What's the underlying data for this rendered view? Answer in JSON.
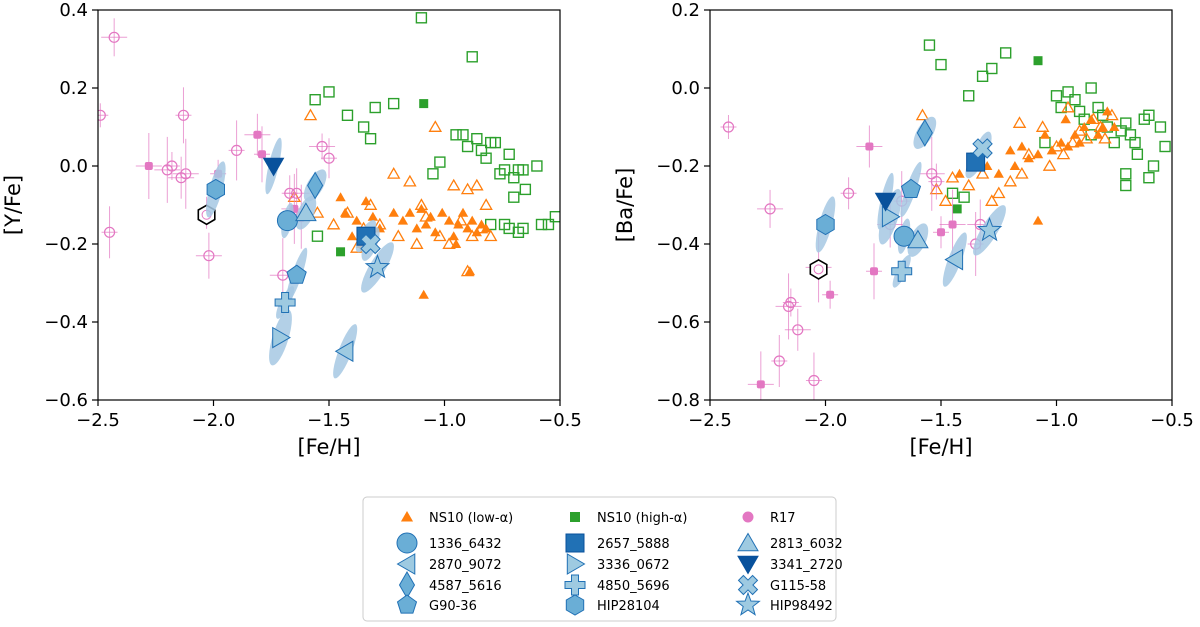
{
  "colors": {
    "low_alpha": "#ff7f0e",
    "high_alpha": "#2ca02c",
    "r17": "#e377c2",
    "star_fill": "#6aaed6",
    "star_fill_light": "#9ecae1",
    "star_dark": "#2171b5",
    "star_darker": "#08519c",
    "ellipse": "#a6c8e3"
  },
  "chart_data": [
    {
      "type": "scatter",
      "title": "",
      "xlabel": "[Fe/H]",
      "ylabel": "[Y/Fe]",
      "xlim": [
        -2.5,
        -0.5
      ],
      "ylim": [
        -0.6,
        0.4
      ],
      "xticks": [
        -2.5,
        -2.0,
        -1.5,
        -1.0,
        -0.5
      ],
      "xtick_labels": [
        "−2.5",
        "−2.0",
        "−1.5",
        "−1.0",
        "−0.5"
      ],
      "yticks": [
        -0.6,
        -0.4,
        -0.2,
        0.0,
        0.2,
        0.4
      ],
      "ytick_labels": [
        "−0.6",
        "−0.4",
        "−0.2",
        "0.0",
        "0.2",
        "0.4"
      ],
      "ns10_low_filled": [
        [
          -1.45,
          -0.08
        ],
        [
          -1.43,
          -0.12
        ],
        [
          -1.38,
          -0.14
        ],
        [
          -1.34,
          -0.09
        ],
        [
          -1.31,
          -0.13
        ],
        [
          -1.28,
          -0.16
        ],
        [
          -1.22,
          -0.12
        ],
        [
          -1.18,
          -0.14
        ],
        [
          -1.15,
          -0.12
        ],
        [
          -1.12,
          -0.16
        ],
        [
          -1.1,
          -0.11
        ],
        [
          -1.08,
          -0.15
        ],
        [
          -1.06,
          -0.13
        ],
        [
          -1.04,
          -0.17
        ],
        [
          -1.01,
          -0.12
        ],
        [
          -0.98,
          -0.14
        ],
        [
          -0.96,
          -0.18
        ],
        [
          -0.94,
          -0.15
        ],
        [
          -0.92,
          -0.12
        ],
        [
          -0.9,
          -0.16
        ],
        [
          -0.88,
          -0.14
        ],
        [
          -0.86,
          -0.17
        ],
        [
          -0.84,
          -0.15
        ],
        [
          -0.82,
          -0.16
        ],
        [
          -0.89,
          -0.27
        ],
        [
          -1.09,
          -0.33
        ],
        [
          -1.4,
          -0.18
        ],
        [
          -1.36,
          -0.2
        ],
        [
          -0.95,
          -0.2
        ]
      ],
      "ns10_low_open": [
        [
          -1.65,
          -0.08
        ],
        [
          -1.58,
          0.13
        ],
        [
          -1.55,
          -0.12
        ],
        [
          -1.48,
          -0.15
        ],
        [
          -1.42,
          -0.12
        ],
        [
          -1.38,
          -0.21
        ],
        [
          -1.35,
          -0.16
        ],
        [
          -1.32,
          -0.1
        ],
        [
          -1.28,
          -0.15
        ],
        [
          -1.2,
          -0.18
        ],
        [
          -1.15,
          -0.04
        ],
        [
          -1.12,
          -0.2
        ],
        [
          -1.08,
          -0.13
        ],
        [
          -1.04,
          0.1
        ],
        [
          -1.02,
          -0.18
        ],
        [
          -0.98,
          -0.2
        ],
        [
          -0.96,
          -0.05
        ],
        [
          -0.93,
          -0.14
        ],
        [
          -0.9,
          -0.06
        ],
        [
          -0.88,
          -0.18
        ],
        [
          -0.86,
          -0.05
        ],
        [
          -0.84,
          -0.16
        ],
        [
          -0.82,
          -0.1
        ],
        [
          -0.8,
          -0.18
        ],
        [
          -0.9,
          -0.27
        ],
        [
          -1.1,
          -0.1
        ],
        [
          -1.22,
          -0.02
        ]
      ],
      "ns10_high_filled": [
        [
          -1.45,
          -0.22
        ],
        [
          -1.09,
          0.16
        ]
      ],
      "ns10_high_open": [
        [
          -1.55,
          -0.18
        ],
        [
          -1.56,
          0.17
        ],
        [
          -1.5,
          0.19
        ],
        [
          -1.42,
          0.13
        ],
        [
          -1.35,
          0.1
        ],
        [
          -1.32,
          0.07
        ],
        [
          -1.3,
          0.15
        ],
        [
          -1.22,
          0.16
        ],
        [
          -1.1,
          0.38
        ],
        [
          -1.02,
          0.01
        ],
        [
          -1.05,
          -0.02
        ],
        [
          -0.95,
          0.08
        ],
        [
          -0.92,
          0.08
        ],
        [
          -0.9,
          0.05
        ],
        [
          -0.88,
          0.28
        ],
        [
          -0.86,
          0.07
        ],
        [
          -0.84,
          0.04
        ],
        [
          -0.82,
          0.02
        ],
        [
          -0.8,
          0.06
        ],
        [
          -0.78,
          0.06
        ],
        [
          -0.76,
          -0.02
        ],
        [
          -0.74,
          -0.01
        ],
        [
          -0.72,
          0.03
        ],
        [
          -0.7,
          -0.03
        ],
        [
          -0.68,
          -0.01
        ],
        [
          -0.66,
          -0.01
        ],
        [
          -0.74,
          -0.15
        ],
        [
          -0.72,
          -0.16
        ],
        [
          -0.68,
          -0.17
        ],
        [
          -0.66,
          -0.16
        ],
        [
          -0.6,
          0.0
        ],
        [
          -0.58,
          -0.15
        ],
        [
          -0.55,
          -0.15
        ],
        [
          -0.52,
          -0.13
        ],
        [
          -0.7,
          -0.08
        ],
        [
          -0.65,
          -0.06
        ],
        [
          -0.8,
          -0.15
        ]
      ],
      "r17_filled": [
        [
          -2.28,
          0.0
        ],
        [
          -1.98,
          -0.02
        ],
        [
          -1.81,
          0.08
        ],
        [
          -1.79,
          0.03
        ],
        [
          -1.65,
          -0.11
        ]
      ],
      "r17_open": [
        [
          -2.49,
          0.13
        ],
        [
          -2.43,
          0.33
        ],
        [
          -2.45,
          -0.17
        ],
        [
          -2.2,
          -0.01
        ],
        [
          -2.18,
          0.0
        ],
        [
          -2.14,
          -0.03
        ],
        [
          -2.13,
          0.13
        ],
        [
          -2.12,
          -0.02
        ],
        [
          -2.03,
          -0.12
        ],
        [
          -2.02,
          -0.23
        ],
        [
          -1.9,
          0.04
        ],
        [
          -1.7,
          -0.28
        ],
        [
          -1.67,
          -0.07
        ],
        [
          -1.64,
          -0.07
        ],
        [
          -1.62,
          -0.13
        ],
        [
          -1.53,
          0.05
        ],
        [
          -1.5,
          0.02
        ]
      ],
      "sample": [
        {
          "name": "1336_6432",
          "marker": "circle",
          "shade": "mid",
          "x": -1.68,
          "y": -0.14
        },
        {
          "name": "2870_9072",
          "marker": "tri_left",
          "shade": "light",
          "x": -1.43,
          "y": -0.475
        },
        {
          "name": "4587_5616",
          "marker": "diamond",
          "shade": "mid",
          "x": -1.56,
          "y": -0.05
        },
        {
          "name": "G90-36",
          "marker": "pentagon",
          "shade": "mid",
          "x": -1.64,
          "y": -0.28
        },
        {
          "name": "2657_5888",
          "marker": "square",
          "shade": "dark",
          "x": -1.34,
          "y": -0.18
        },
        {
          "name": "3336_0672",
          "marker": "tri_right",
          "shade": "light",
          "x": -1.71,
          "y": -0.44
        },
        {
          "name": "4850_5696",
          "marker": "plus",
          "shade": "light",
          "x": -1.69,
          "y": -0.35
        },
        {
          "name": "HIP28104",
          "marker": "hexagon",
          "shade": "mid",
          "x": -1.99,
          "y": -0.06
        },
        {
          "name": "2813_6032",
          "marker": "tri_up",
          "shade": "light",
          "x": -1.6,
          "y": -0.12
        },
        {
          "name": "3341_2720",
          "marker": "tri_down",
          "shade": "darker",
          "x": -1.74,
          "y": 0.0
        },
        {
          "name": "G115-58",
          "marker": "cross",
          "shade": "light",
          "x": -1.32,
          "y": -0.2
        },
        {
          "name": "HIP98492",
          "marker": "star",
          "shade": "light",
          "x": -1.29,
          "y": -0.26
        }
      ],
      "sun_like": {
        "x": -2.03,
        "y": -0.125
      }
    },
    {
      "type": "scatter",
      "title": "",
      "xlabel": "[Fe/H]",
      "ylabel": "[Ba/Fe]",
      "xlim": [
        -2.5,
        -0.5
      ],
      "ylim": [
        -0.8,
        0.2
      ],
      "xticks": [
        -2.5,
        -2.0,
        -1.5,
        -1.0,
        -0.5
      ],
      "xtick_labels": [
        "−2.5",
        "−2.0",
        "−1.5",
        "−1.0",
        "−0.5"
      ],
      "yticks": [
        -0.8,
        -0.6,
        -0.4,
        -0.2,
        0.0,
        0.2
      ],
      "ytick_labels": [
        "−0.8",
        "−0.6",
        "−0.4",
        "−0.2",
        "0.0",
        "0.2"
      ],
      "ns10_low_filled": [
        [
          -1.42,
          -0.22
        ],
        [
          -1.35,
          -0.18
        ],
        [
          -1.3,
          -0.2
        ],
        [
          -1.2,
          -0.16
        ],
        [
          -1.15,
          -0.15
        ],
        [
          -1.12,
          -0.18
        ],
        [
          -1.08,
          -0.17
        ],
        [
          -1.05,
          -0.12
        ],
        [
          -1.02,
          -0.16
        ],
        [
          -0.98,
          -0.14
        ],
        [
          -0.95,
          -0.15
        ],
        [
          -0.92,
          -0.12
        ],
        [
          -0.9,
          -0.14
        ],
        [
          -0.88,
          -0.1
        ],
        [
          -0.85,
          -0.08
        ],
        [
          -0.82,
          -0.12
        ],
        [
          -0.8,
          -0.1
        ],
        [
          -0.78,
          -0.06
        ],
        [
          -0.75,
          -0.1
        ],
        [
          -1.08,
          -0.34
        ],
        [
          -1.18,
          -0.2
        ],
        [
          -0.96,
          -0.08
        ],
        [
          -1.25,
          -0.22
        ]
      ],
      "ns10_low_open": [
        [
          -1.58,
          -0.07
        ],
        [
          -1.52,
          -0.26
        ],
        [
          -1.48,
          -0.29
        ],
        [
          -1.45,
          -0.23
        ],
        [
          -1.38,
          -0.25
        ],
        [
          -1.32,
          -0.22
        ],
        [
          -1.28,
          -0.29
        ],
        [
          -1.25,
          -0.27
        ],
        [
          -1.2,
          -0.24
        ],
        [
          -1.15,
          -0.22
        ],
        [
          -1.12,
          -0.17
        ],
        [
          -1.06,
          -0.1
        ],
        [
          -1.03,
          -0.2
        ],
        [
          -1.0,
          -0.15
        ],
        [
          -0.97,
          -0.17
        ],
        [
          -0.95,
          -0.05
        ],
        [
          -0.93,
          -0.14
        ],
        [
          -0.9,
          -0.11
        ],
        [
          -0.87,
          -0.13
        ],
        [
          -0.84,
          -0.08
        ],
        [
          -0.81,
          -0.1
        ],
        [
          -0.79,
          -0.13
        ],
        [
          -0.76,
          -0.07
        ],
        [
          -1.16,
          -0.09
        ]
      ],
      "ns10_high_filled": [
        [
          -1.43,
          -0.31
        ],
        [
          -1.08,
          0.07
        ]
      ],
      "ns10_high_open": [
        [
          -1.55,
          0.11
        ],
        [
          -1.5,
          0.06
        ],
        [
          -1.45,
          -0.27
        ],
        [
          -1.4,
          -0.28
        ],
        [
          -1.38,
          -0.02
        ],
        [
          -1.32,
          0.03
        ],
        [
          -1.28,
          0.05
        ],
        [
          -1.22,
          0.09
        ],
        [
          -1.0,
          -0.02
        ],
        [
          -0.98,
          -0.05
        ],
        [
          -0.95,
          -0.01
        ],
        [
          -0.92,
          -0.03
        ],
        [
          -0.9,
          -0.06
        ],
        [
          -0.88,
          -0.08
        ],
        [
          -0.85,
          0.0
        ],
        [
          -0.82,
          -0.05
        ],
        [
          -0.8,
          -0.07
        ],
        [
          -0.78,
          -0.1
        ],
        [
          -0.75,
          -0.14
        ],
        [
          -0.72,
          -0.11
        ],
        [
          -0.7,
          -0.09
        ],
        [
          -0.68,
          -0.12
        ],
        [
          -0.65,
          -0.17
        ],
        [
          -0.62,
          -0.08
        ],
        [
          -0.6,
          -0.07
        ],
        [
          -0.58,
          -0.2
        ],
        [
          -0.55,
          -0.1
        ],
        [
          -0.53,
          -0.15
        ],
        [
          -0.7,
          -0.22
        ],
        [
          -0.7,
          -0.25
        ],
        [
          -0.6,
          -0.23
        ],
        [
          -0.66,
          -0.14
        ],
        [
          -0.85,
          -0.12
        ],
        [
          -1.05,
          -0.14
        ],
        [
          -1.35,
          -0.18
        ]
      ],
      "r17_filled": [
        [
          -2.28,
          -0.76
        ],
        [
          -1.98,
          -0.53
        ],
        [
          -1.81,
          -0.15
        ],
        [
          -1.79,
          -0.47
        ],
        [
          -1.45,
          -0.35
        ],
        [
          -1.5,
          -0.37
        ]
      ],
      "r17_open": [
        [
          -2.42,
          -0.1
        ],
        [
          -2.24,
          -0.31
        ],
        [
          -2.2,
          -0.7
        ],
        [
          -2.16,
          -0.56
        ],
        [
          -2.15,
          -0.55
        ],
        [
          -2.12,
          -0.62
        ],
        [
          -2.05,
          -0.75
        ],
        [
          -2.03,
          -0.46
        ],
        [
          -1.9,
          -0.27
        ],
        [
          -1.72,
          -0.35
        ],
        [
          -1.67,
          -0.29
        ],
        [
          -1.54,
          -0.22
        ],
        [
          -1.52,
          -0.24
        ],
        [
          -1.33,
          -0.35
        ],
        [
          -1.35,
          -0.4
        ]
      ],
      "sample": [
        {
          "name": "1336_6432",
          "marker": "circle",
          "shade": "mid",
          "x": -1.66,
          "y": -0.38
        },
        {
          "name": "2870_9072",
          "marker": "tri_left",
          "shade": "light",
          "x": -1.44,
          "y": -0.44
        },
        {
          "name": "4587_5616",
          "marker": "diamond",
          "shade": "mid",
          "x": -1.57,
          "y": -0.115
        },
        {
          "name": "G90-36",
          "marker": "pentagon",
          "shade": "mid",
          "x": -1.63,
          "y": -0.26
        },
        {
          "name": "2657_5888",
          "marker": "square",
          "shade": "dark",
          "x": -1.35,
          "y": -0.19
        },
        {
          "name": "3336_0672",
          "marker": "tri_right",
          "shade": "light",
          "x": -1.72,
          "y": -0.33
        },
        {
          "name": "4850_5696",
          "marker": "plus",
          "shade": "light",
          "x": -1.67,
          "y": -0.47
        },
        {
          "name": "HIP28104",
          "marker": "hexagon",
          "shade": "mid",
          "x": -2.0,
          "y": -0.35
        },
        {
          "name": "2813_6032",
          "marker": "tri_up",
          "shade": "light",
          "x": -1.6,
          "y": -0.39
        },
        {
          "name": "3341_2720",
          "marker": "tri_down",
          "shade": "darker",
          "x": -1.74,
          "y": -0.29
        },
        {
          "name": "G115-58",
          "marker": "cross",
          "shade": "light",
          "x": -1.32,
          "y": -0.155
        },
        {
          "name": "HIP98492",
          "marker": "star",
          "shade": "light",
          "x": -1.29,
          "y": -0.365
        }
      ],
      "sun_like": {
        "x": -2.03,
        "y": -0.465
      }
    }
  ],
  "legend": {
    "placement": "bottom-center",
    "entries": [
      {
        "label": "NS10 (low-α)",
        "marker": "tri_up_small",
        "shade": "low_alpha"
      },
      {
        "label": "NS10 (high-α)",
        "marker": "square_small",
        "shade": "high_alpha"
      },
      {
        "label": "R17",
        "marker": "circle_small",
        "shade": "r17"
      },
      {
        "label": "1336_6432",
        "marker": "circle",
        "shade": "mid"
      },
      {
        "label": "2657_5888",
        "marker": "square",
        "shade": "dark"
      },
      {
        "label": "2813_6032",
        "marker": "tri_up",
        "shade": "light"
      },
      {
        "label": "2870_9072",
        "marker": "tri_left",
        "shade": "light"
      },
      {
        "label": "3336_0672",
        "marker": "tri_right",
        "shade": "light"
      },
      {
        "label": "3341_2720",
        "marker": "tri_down",
        "shade": "darker"
      },
      {
        "label": "4587_5616",
        "marker": "diamond",
        "shade": "mid"
      },
      {
        "label": "4850_5696",
        "marker": "plus",
        "shade": "light"
      },
      {
        "label": "G115-58",
        "marker": "cross",
        "shade": "light"
      },
      {
        "label": "G90-36",
        "marker": "pentagon",
        "shade": "mid"
      },
      {
        "label": "HIP28104",
        "marker": "hexagon",
        "shade": "mid"
      },
      {
        "label": "HIP98492",
        "marker": "star",
        "shade": "light"
      }
    ]
  }
}
